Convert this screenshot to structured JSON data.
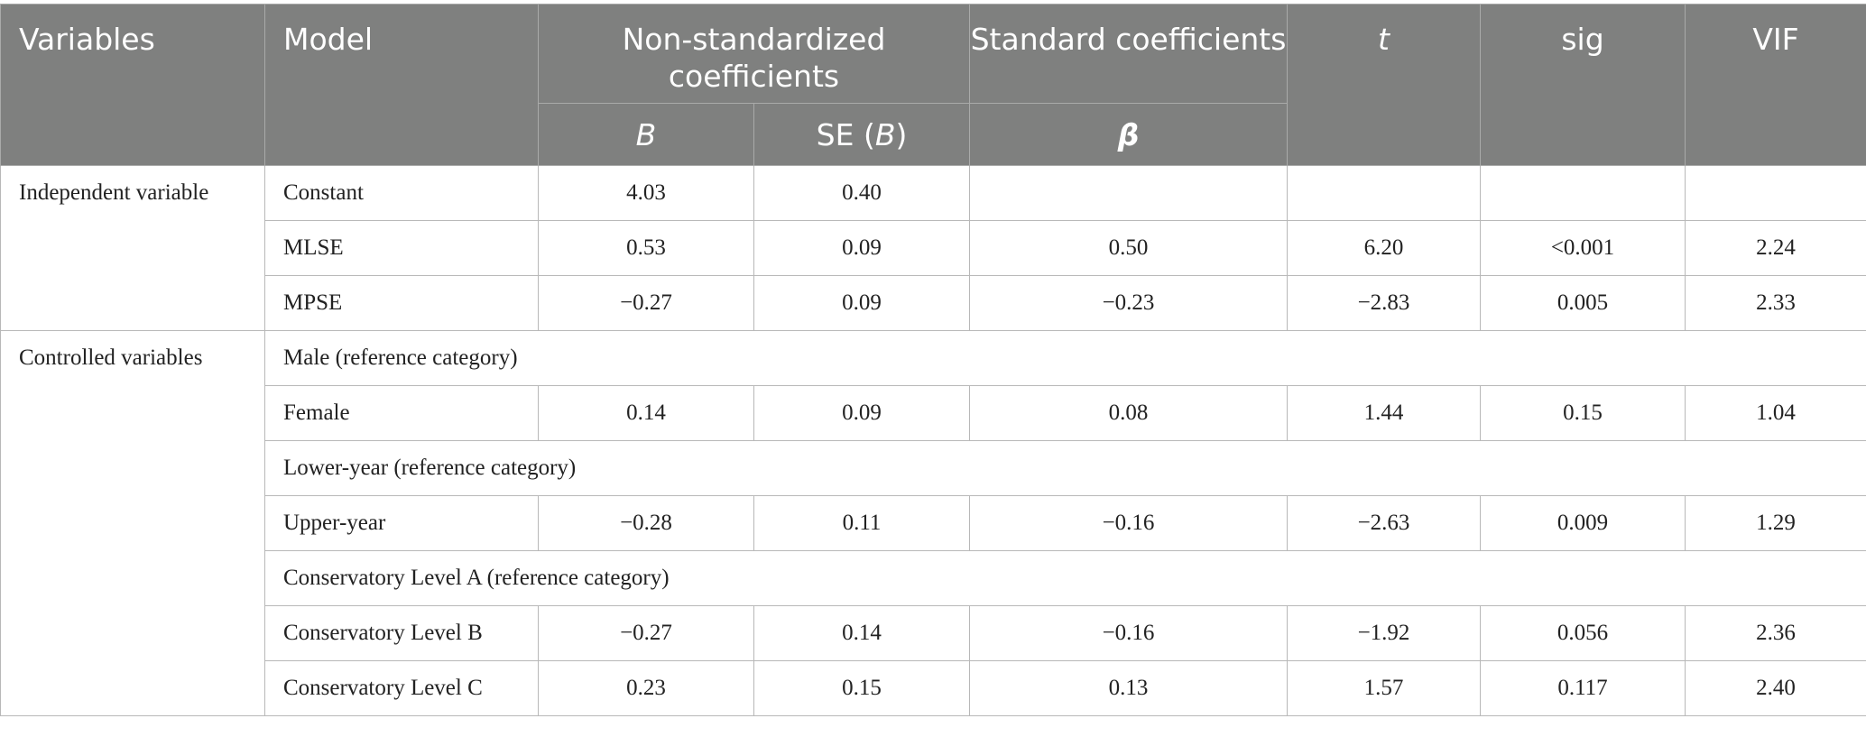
{
  "table": {
    "headers": {
      "variables": "Variables",
      "model": "Model",
      "non_std": "Non-standardized coefficients",
      "std": "Standard coefficients",
      "t": "t",
      "sig": "sig",
      "vif": "VIF",
      "b": "B",
      "se_prefix": "SE (",
      "se_b": "B",
      "se_suffix": ")",
      "beta": "β"
    },
    "groups": [
      {
        "label": "Independent variable"
      },
      {
        "label": "Controlled variables"
      }
    ],
    "rows": [
      {
        "model": "Constant",
        "b": "4.03",
        "se": "0.40",
        "beta": "",
        "t": "",
        "sig": "",
        "vif": ""
      },
      {
        "model": "MLSE",
        "b": "0.53",
        "se": "0.09",
        "beta": "0.50",
        "t": "6.20",
        "sig": "<0.001",
        "vif": "2.24"
      },
      {
        "model": "MPSE",
        "b": "−0.27",
        "se": "0.09",
        "beta": "−0.23",
        "t": "−2.83",
        "sig": "0.005",
        "vif": "2.33"
      },
      {
        "model": "Male (reference category)"
      },
      {
        "model": "Female",
        "b": "0.14",
        "se": "0.09",
        "beta": "0.08",
        "t": "1.44",
        "sig": "0.15",
        "vif": "1.04"
      },
      {
        "model": "Lower-year (reference category)"
      },
      {
        "model": "Upper-year",
        "b": "−0.28",
        "se": "0.11",
        "beta": "−0.16",
        "t": "−2.63",
        "sig": "0.009",
        "vif": "1.29"
      },
      {
        "model": "Conservatory Level A (reference category)"
      },
      {
        "model": "Conservatory Level B",
        "b": "−0.27",
        "se": "0.14",
        "beta": "−0.16",
        "t": "−1.92",
        "sig": "0.056",
        "vif": "2.36"
      },
      {
        "model": "Conservatory Level C",
        "b": "0.23",
        "se": "0.15",
        "beta": "0.13",
        "t": "1.57",
        "sig": "0.117",
        "vif": "2.40"
      }
    ]
  }
}
